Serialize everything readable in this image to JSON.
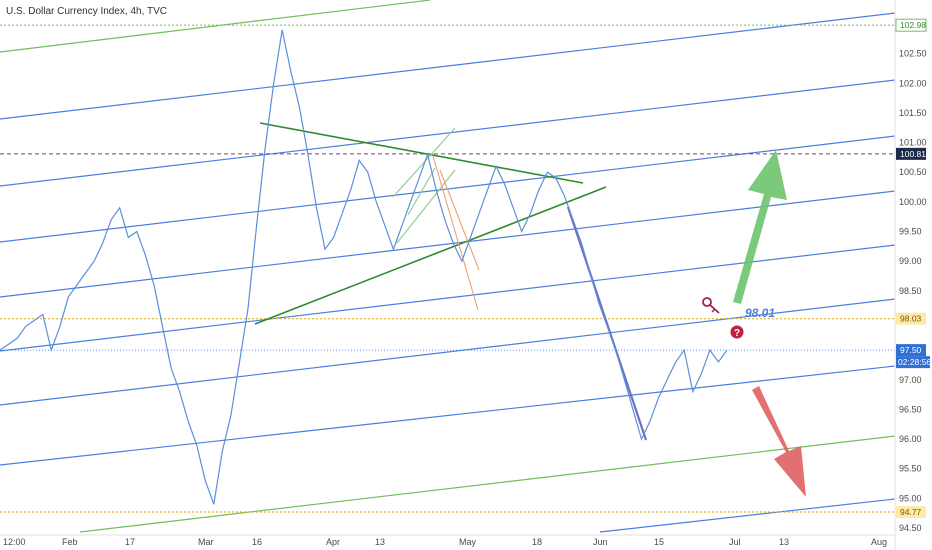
{
  "chart_data": {
    "type": "line",
    "title": "U.S. Dollar Currency Index, 4h, TVC",
    "ylim": [
      94.5,
      103.35
    ],
    "y_ticks": [
      "103.00",
      "102.50",
      "102.00",
      "101.50",
      "101.00",
      "100.50",
      "100.00",
      "99.50",
      "99.00",
      "98.50",
      "98.00",
      "97.50",
      "97.00",
      "96.50",
      "96.00",
      "95.50",
      "95.00",
      "94.50"
    ],
    "x_ticks": [
      "12:00",
      "Feb",
      "17",
      "Mar",
      "16",
      "Apr",
      "13",
      "May",
      "18",
      "Jun",
      "15",
      "Jul",
      "13",
      "Aug"
    ],
    "series": [
      {
        "values": [
          97.5,
          97.6,
          97.7,
          97.9,
          98.0,
          98.1,
          97.5,
          97.9,
          98.4,
          98.6,
          98.8,
          99.0,
          99.3,
          99.7,
          99.9,
          99.4,
          99.5,
          99.1,
          98.6,
          97.9,
          97.2,
          96.8,
          96.3,
          95.9,
          95.3,
          94.9,
          95.8,
          96.4,
          97.3,
          98.2,
          99.6,
          100.9,
          102.0,
          102.9,
          102.2,
          101.6,
          100.8,
          99.9,
          99.2,
          99.4,
          99.8,
          100.2,
          100.7,
          100.5,
          100.0,
          99.6,
          99.2,
          99.6,
          100.0,
          100.4,
          100.8,
          100.2,
          99.7,
          99.3,
          99.0,
          99.4,
          99.8,
          100.2,
          100.6,
          100.3,
          99.9,
          99.5,
          99.8,
          100.2,
          100.5,
          100.4,
          100.1,
          99.7,
          99.3,
          98.8,
          98.3,
          97.9,
          97.5,
          97.0,
          96.5,
          96.0,
          96.3,
          96.7,
          97.0,
          97.3,
          97.5,
          96.8,
          97.1,
          97.5,
          97.3,
          97.5
        ]
      }
    ],
    "price_badges": {
      "top": "102.98",
      "upper_dashed": "100.81",
      "yellow_upper": "98.03",
      "current": "97.50",
      "countdown": "02:28:56",
      "yellow_lower": "94.77"
    },
    "annotation": "98.01",
    "colors": {
      "price": "#5b8fdb",
      "channel": "#4a7fe0",
      "channel_green": "#6fbf5a",
      "triangle": "#2f8a2f",
      "down_line": "#6f6fc4",
      "up_arrow": "#6dc46d",
      "down_arrow": "#e06060",
      "yellow": "#e5b020",
      "badge_blue": "#2f6fd6",
      "badge_dark": "#1e2a4a"
    }
  }
}
